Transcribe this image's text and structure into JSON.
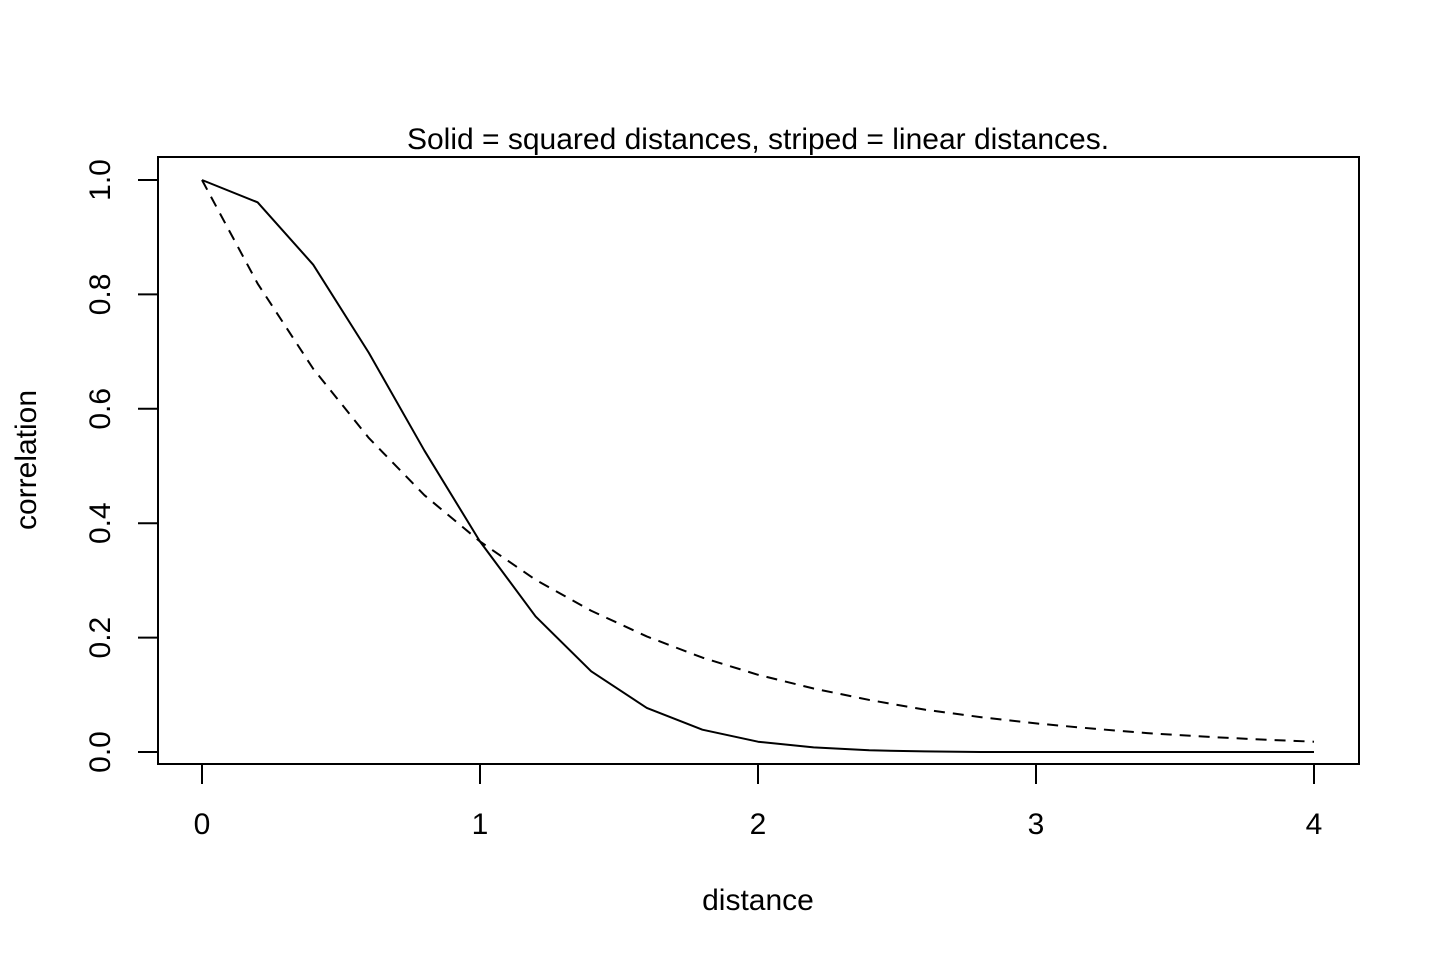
{
  "chart_data": {
    "type": "line",
    "title": "Solid = squared distances, striped = linear distances.",
    "xlabel": "distance",
    "ylabel": "correlation",
    "xlim": [
      0,
      4
    ],
    "ylim": [
      0,
      1
    ],
    "xticks": [
      0,
      1,
      2,
      3,
      4
    ],
    "xtick_labels": [
      "0",
      "1",
      "2",
      "3",
      "4"
    ],
    "yticks": [
      0,
      0.2,
      0.4,
      0.6,
      0.8,
      1.0
    ],
    "ytick_labels": [
      "0.0",
      "0.2",
      "0.4",
      "0.6",
      "0.8",
      "1.0"
    ],
    "grid": false,
    "x": [
      0,
      0.2,
      0.4,
      0.6,
      0.8,
      1.0,
      1.2,
      1.4,
      1.6,
      1.8,
      2.0,
      2.2,
      2.4,
      2.6,
      2.8,
      3.0,
      3.2,
      3.4,
      3.6,
      3.8,
      4.0
    ],
    "series": [
      {
        "style": "solid",
        "values": [
          1.0,
          0.961,
          0.852,
          0.698,
          0.527,
          0.368,
          0.237,
          0.141,
          0.077,
          0.039,
          0.018,
          0.008,
          0.003,
          0.001,
          0.0,
          0.0,
          0.0,
          0.0,
          0.0,
          0.0,
          0.0
        ]
      },
      {
        "style": "dashed",
        "values": [
          1.0,
          0.819,
          0.67,
          0.549,
          0.449,
          0.368,
          0.301,
          0.247,
          0.202,
          0.165,
          0.135,
          0.111,
          0.091,
          0.074,
          0.061,
          0.05,
          0.041,
          0.033,
          0.027,
          0.022,
          0.018
        ]
      }
    ]
  }
}
